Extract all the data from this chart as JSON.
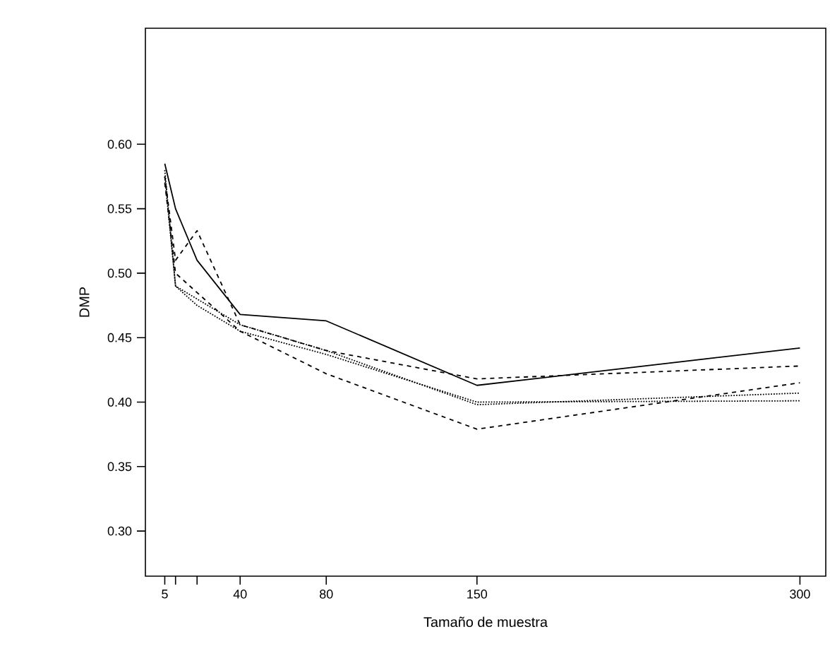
{
  "chart_data": {
    "type": "line",
    "xlabel": "Tamaño de muestra",
    "ylabel": "DMP",
    "x": [
      5,
      10,
      20,
      40,
      80,
      150,
      300
    ],
    "series": [
      {
        "color": "#000000",
        "line_style": "solid",
        "values": [
          0.585,
          0.55,
          0.51,
          0.468,
          0.463,
          0.413,
          0.442
        ]
      },
      {
        "color": "#000000",
        "line_style": "dashed",
        "values": [
          0.575,
          0.51,
          0.533,
          0.46,
          0.44,
          0.418,
          0.428
        ]
      },
      {
        "color": "#000000",
        "line_style": "dashed",
        "values": [
          0.57,
          0.5,
          0.485,
          0.455,
          0.422,
          0.379,
          0.415
        ]
      },
      {
        "color": "#000000",
        "line_style": "dotted",
        "values": [
          0.575,
          0.49,
          0.48,
          0.46,
          0.44,
          0.398,
          0.407
        ]
      },
      {
        "color": "#000000",
        "line_style": "dotted",
        "values": [
          0.58,
          0.49,
          0.475,
          0.455,
          0.437,
          0.4,
          0.401
        ]
      }
    ],
    "xlim": [
      -4,
      312
    ],
    "ylim": [
      0.265,
      0.69
    ],
    "xticks": [
      5,
      {
        "value": 10,
        "label": null
      },
      {
        "value": 20,
        "label": null
      },
      40,
      80,
      150,
      300
    ],
    "yticks": [
      {
        "value": 0.3,
        "label": "0.30"
      },
      {
        "value": 0.35,
        "label": "0.35"
      },
      {
        "value": 0.4,
        "label": "0.40"
      },
      {
        "value": 0.45,
        "label": "0.45"
      },
      {
        "value": 0.5,
        "label": "0.50"
      },
      {
        "value": 0.55,
        "label": "0.55"
      },
      {
        "value": 0.6,
        "label": "0.60"
      }
    ],
    "marker": "none"
  }
}
